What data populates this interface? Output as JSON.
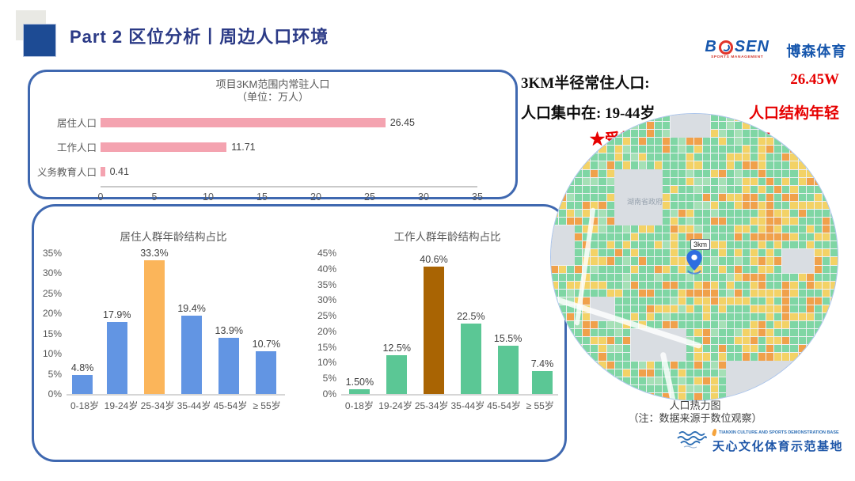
{
  "header": {
    "title": "Part 2 区位分析丨周边人口环境"
  },
  "bosen_logo": {
    "b": "B",
    "sen": "SEN",
    "tagline": "SPORTS MANAGEMENT",
    "cn": "博森体育"
  },
  "stats": {
    "line1_label": "3KM半径常住人口:",
    "line1_value": "26.45W",
    "line2_label": "人口集中在:  19-44岁",
    "line2_value": "人口结构年轻",
    "line3": "★受教育阶段人口比率较高",
    "red_color": "#e60000"
  },
  "heatmap": {
    "caption": "人口热力图",
    "note": "（注：数据来源于数位观察）",
    "pin_label": "3km",
    "map_label": "湖南省政府",
    "palette": {
      "green": "#7fd6a4",
      "light_green": "#a5e0b6",
      "yellow": "#f3d266",
      "orange": "#f0a14b",
      "gray": "#d9dde2",
      "bg": "#eef1f4",
      "ring": "#a9c3ea",
      "pin": "#2e6de0"
    },
    "gray_patches": [
      [
        8,
        7,
        6,
        7
      ],
      [
        0,
        14,
        3,
        5
      ],
      [
        10,
        27,
        7,
        4
      ],
      [
        22,
        31,
        9,
        5
      ],
      [
        15,
        0,
        5,
        3
      ],
      [
        29,
        17,
        4,
        3
      ],
      [
        5,
        23,
        3,
        3
      ]
    ]
  },
  "tianxin_logo": {
    "en": "TIANXIN CULTURE AND SPORTS DEMONSTRATION BASE",
    "cn": "天心文化体育示范基地"
  },
  "chart_data": [
    {
      "type": "bar",
      "orientation": "horizontal",
      "title": "项目3KM范围内常驻人口",
      "subtitle": "（单位：万人）",
      "categories": [
        "居住人口",
        "工作人口",
        "义务教育人口"
      ],
      "values": [
        26.45,
        11.71,
        0.41
      ],
      "value_labels": [
        "26.45",
        "11.71",
        "0.41"
      ],
      "xticks": [
        "0",
        "5",
        "10",
        "15",
        "20",
        "25",
        "30",
        "35"
      ],
      "xlim": [
        0,
        35
      ],
      "bar_color": "#f4a3b0",
      "grid": false
    },
    {
      "type": "bar",
      "orientation": "vertical",
      "title": "居住人群年龄结构占比",
      "categories": [
        "0-18岁",
        "19-24岁",
        "25-34岁",
        "35-44岁",
        "45-54岁",
        "≥ 55岁"
      ],
      "values": [
        4.8,
        17.9,
        33.3,
        19.4,
        13.9,
        10.7
      ],
      "value_labels": [
        "4.8%",
        "17.9%",
        "33.3%",
        "19.4%",
        "13.9%",
        "10.7%"
      ],
      "ylim": [
        0,
        35
      ],
      "ytick_step": 5,
      "bar_color": "#6295e3",
      "highlight_index": 2,
      "highlight_color": "#fbb55a",
      "grid": false
    },
    {
      "type": "bar",
      "orientation": "vertical",
      "title": "工作人群年龄结构占比",
      "categories": [
        "0-18岁",
        "19-24岁",
        "25-34岁",
        "35-44岁",
        "45-54岁",
        "≥ 55岁"
      ],
      "values": [
        1.5,
        12.5,
        40.6,
        22.5,
        15.5,
        7.4
      ],
      "value_labels": [
        "1.50%",
        "12.5%",
        "40.6%",
        "22.5%",
        "15.5%",
        "7.4%"
      ],
      "ylim": [
        0,
        45
      ],
      "ytick_step": 5,
      "bar_color": "#5bc795",
      "highlight_index": 2,
      "highlight_color": "#a96403",
      "grid": false
    }
  ]
}
